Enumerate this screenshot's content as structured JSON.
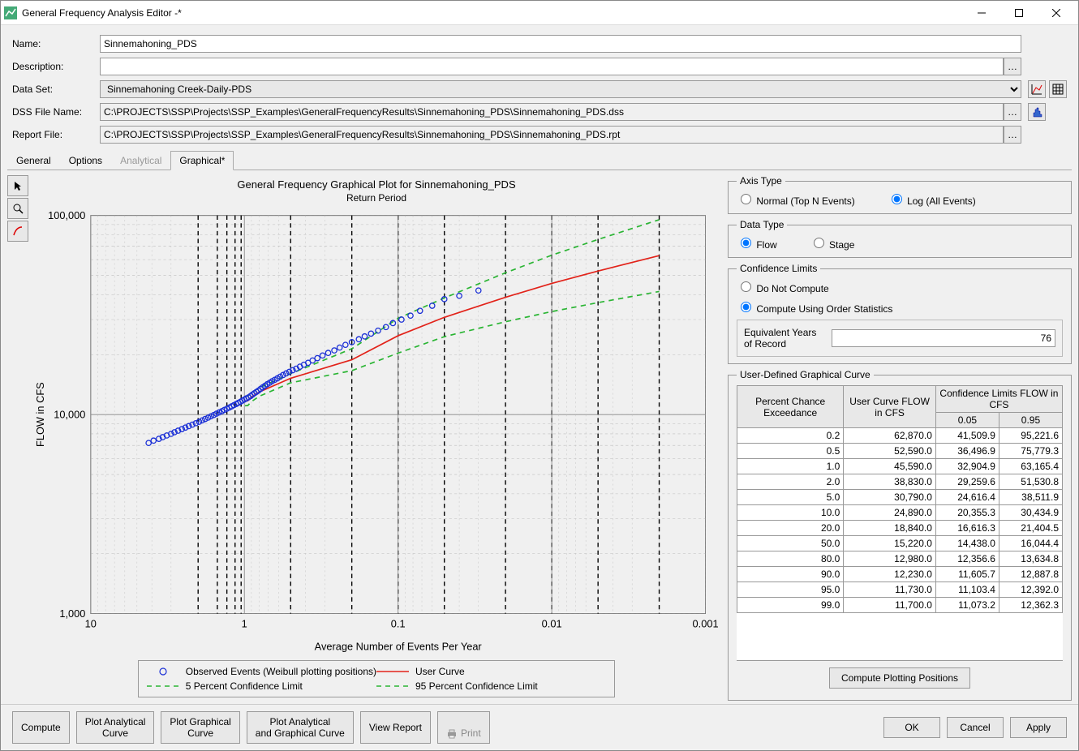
{
  "window": {
    "title": "General Frequency Analysis Editor -*"
  },
  "form": {
    "name_label": "Name:",
    "name_value": "Sinnemahoning_PDS",
    "desc_label": "Description:",
    "desc_value": "",
    "dataset_label": "Data Set:",
    "dataset_value": "Sinnemahoning Creek-Daily-PDS",
    "dss_label": "DSS File Name:",
    "dss_value": "C:\\PROJECTS\\SSP\\Projects\\SSP_Examples\\GeneralFrequencyResults\\Sinnemahoning_PDS\\Sinnemahoning_PDS.dss",
    "report_label": "Report File:",
    "report_value": "C:\\PROJECTS\\SSP\\Projects\\SSP_Examples\\GeneralFrequencyResults\\Sinnemahoning_PDS\\Sinnemahoning_PDS.rpt"
  },
  "tabs": {
    "items": [
      "General",
      "Options",
      "Analytical",
      "Graphical*"
    ],
    "active": 3,
    "disabled": [
      2
    ]
  },
  "chart": {
    "title": "General Frequency Graphical Plot for Sinnemahoning_PDS",
    "subtitle": "Return Period",
    "xlabel": "Average Number of Events Per Year",
    "ylabel": "FLOW in CFS",
    "background": "#f0f0f0",
    "grid_color": "#bdbdbd",
    "x_major": [
      10,
      1,
      0.1,
      0.01,
      0.001
    ],
    "x_dashed_verticals": [
      2,
      1.5,
      1.3,
      1.15,
      1.05,
      0.5,
      0.2,
      0.1,
      0.05,
      0.02,
      0.01,
      0.005,
      0.002
    ],
    "y_ticks": [
      1000,
      10000,
      100000
    ],
    "series": {
      "observed": {
        "label": "Observed Events (Weibull plotting positions)",
        "marker": "open-circle",
        "color": "#1a2fd6",
        "points": [
          [
            4.2,
            7200
          ],
          [
            3.9,
            7400
          ],
          [
            3.6,
            7550
          ],
          [
            3.4,
            7700
          ],
          [
            3.2,
            7850
          ],
          [
            3.0,
            8000
          ],
          [
            2.85,
            8150
          ],
          [
            2.7,
            8300
          ],
          [
            2.55,
            8450
          ],
          [
            2.42,
            8600
          ],
          [
            2.3,
            8750
          ],
          [
            2.18,
            8900
          ],
          [
            2.07,
            9050
          ],
          [
            1.97,
            9200
          ],
          [
            1.88,
            9350
          ],
          [
            1.8,
            9500
          ],
          [
            1.72,
            9650
          ],
          [
            1.65,
            9800
          ],
          [
            1.58,
            9950
          ],
          [
            1.52,
            10100
          ],
          [
            1.46,
            10250
          ],
          [
            1.4,
            10400
          ],
          [
            1.35,
            10550
          ],
          [
            1.3,
            10700
          ],
          [
            1.25,
            10850
          ],
          [
            1.21,
            11000
          ],
          [
            1.17,
            11150
          ],
          [
            1.13,
            11300
          ],
          [
            1.095,
            11450
          ],
          [
            1.06,
            11600
          ],
          [
            1.03,
            11750
          ],
          [
            1.0,
            11900
          ],
          [
            0.97,
            12050
          ],
          [
            0.94,
            12200
          ],
          [
            0.91,
            12400
          ],
          [
            0.885,
            12600
          ],
          [
            0.86,
            12800
          ],
          [
            0.835,
            13000
          ],
          [
            0.81,
            13200
          ],
          [
            0.785,
            13450
          ],
          [
            0.76,
            13700
          ],
          [
            0.735,
            13950
          ],
          [
            0.71,
            14200
          ],
          [
            0.685,
            14450
          ],
          [
            0.66,
            14700
          ],
          [
            0.635,
            14950
          ],
          [
            0.61,
            15200
          ],
          [
            0.585,
            15500
          ],
          [
            0.56,
            15800
          ],
          [
            0.535,
            16100
          ],
          [
            0.51,
            16400
          ],
          [
            0.485,
            16700
          ],
          [
            0.46,
            17000
          ],
          [
            0.435,
            17400
          ],
          [
            0.41,
            17800
          ],
          [
            0.385,
            18200
          ],
          [
            0.36,
            18700
          ],
          [
            0.335,
            19200
          ],
          [
            0.31,
            19800
          ],
          [
            0.285,
            20400
          ],
          [
            0.26,
            21000
          ],
          [
            0.24,
            21700
          ],
          [
            0.22,
            22400
          ],
          [
            0.2,
            23100
          ],
          [
            0.18,
            23900
          ],
          [
            0.165,
            24700
          ],
          [
            0.15,
            25500
          ],
          [
            0.135,
            26400
          ],
          [
            0.12,
            27500
          ],
          [
            0.108,
            28800
          ],
          [
            0.095,
            30000
          ],
          [
            0.083,
            31400
          ],
          [
            0.072,
            33200
          ],
          [
            0.06,
            35200
          ],
          [
            0.05,
            38000
          ],
          [
            0.04,
            39500
          ],
          [
            0.03,
            42000
          ]
        ]
      },
      "user_curve": {
        "label": "User Curve",
        "color": "#e2231a",
        "width": 1.6,
        "points": [
          [
            0.99,
            11700
          ],
          [
            0.95,
            11730
          ],
          [
            0.9,
            12230
          ],
          [
            0.8,
            12980
          ],
          [
            0.5,
            15220
          ],
          [
            0.2,
            18840
          ],
          [
            0.1,
            24890
          ],
          [
            0.05,
            30790
          ],
          [
            0.02,
            38830
          ],
          [
            0.01,
            45590
          ],
          [
            0.005,
            52590
          ],
          [
            0.002,
            62870
          ]
        ]
      },
      "ci_low": {
        "label": "5 Percent Confidence Limit",
        "color": "#2bb534",
        "dash": "6,5",
        "width": 1.6,
        "points": [
          [
            0.99,
            11073
          ],
          [
            0.95,
            11103
          ],
          [
            0.9,
            11606
          ],
          [
            0.8,
            12357
          ],
          [
            0.5,
            14438
          ],
          [
            0.2,
            16616
          ],
          [
            0.1,
            20355
          ],
          [
            0.05,
            24616
          ],
          [
            0.02,
            29260
          ],
          [
            0.01,
            32905
          ],
          [
            0.005,
            36497
          ],
          [
            0.002,
            41510
          ]
        ]
      },
      "ci_high": {
        "label": "95 Percent Confidence Limit",
        "color": "#2bb534",
        "dash": "6,5",
        "width": 1.6,
        "points": [
          [
            0.99,
            12362
          ],
          [
            0.95,
            12392
          ],
          [
            0.9,
            12888
          ],
          [
            0.8,
            13635
          ],
          [
            0.5,
            16044
          ],
          [
            0.2,
            21405
          ],
          [
            0.1,
            30435
          ],
          [
            0.05,
            38512
          ],
          [
            0.02,
            51531
          ],
          [
            0.01,
            63165
          ],
          [
            0.005,
            75779
          ],
          [
            0.002,
            95222
          ]
        ]
      }
    }
  },
  "side": {
    "axis_type": {
      "legend": "Axis Type",
      "normal": "Normal (Top N Events)",
      "log": "Log (All Events)",
      "selected": "log"
    },
    "data_type": {
      "legend": "Data Type",
      "flow": "Flow",
      "stage": "Stage",
      "selected": "flow"
    },
    "conf": {
      "legend": "Confidence Limits",
      "dnc": "Do Not Compute",
      "order": "Compute Using Order Statistics",
      "selected": "order",
      "eq_label": "Equivalent Years of Record",
      "eq_value": "76"
    },
    "curve": {
      "legend": "User-Defined Graphical Curve",
      "headers": {
        "pce": "Percent Chance Exceedance",
        "user": "User Curve FLOW in CFS",
        "cl": "Confidence Limits FLOW in CFS",
        "low": "0.05",
        "high": "0.95"
      },
      "rows": [
        [
          "0.2",
          "62,870.0",
          "41,509.9",
          "95,221.6"
        ],
        [
          "0.5",
          "52,590.0",
          "36,496.9",
          "75,779.3"
        ],
        [
          "1.0",
          "45,590.0",
          "32,904.9",
          "63,165.4"
        ],
        [
          "2.0",
          "38,830.0",
          "29,259.6",
          "51,530.8"
        ],
        [
          "5.0",
          "30,790.0",
          "24,616.4",
          "38,511.9"
        ],
        [
          "10.0",
          "24,890.0",
          "20,355.3",
          "30,434.9"
        ],
        [
          "20.0",
          "18,840.0",
          "16,616.3",
          "21,404.5"
        ],
        [
          "50.0",
          "15,220.0",
          "14,438.0",
          "16,044.4"
        ],
        [
          "80.0",
          "12,980.0",
          "12,356.6",
          "13,634.8"
        ],
        [
          "90.0",
          "12,230.0",
          "11,605.7",
          "12,887.8"
        ],
        [
          "95.0",
          "11,730.0",
          "11,103.4",
          "12,392.0"
        ],
        [
          "99.0",
          "11,700.0",
          "11,073.2",
          "12,362.3"
        ]
      ],
      "compute_btn": "Compute Plotting Positions"
    }
  },
  "footer": {
    "compute": "Compute",
    "plot_analytical": "Plot Analytical\nCurve",
    "plot_graphical": "Plot Graphical\nCurve",
    "plot_both": "Plot Analytical\nand Graphical Curve",
    "view_report": "View Report",
    "print": "Print",
    "ok": "OK",
    "cancel": "Cancel",
    "apply": "Apply"
  }
}
